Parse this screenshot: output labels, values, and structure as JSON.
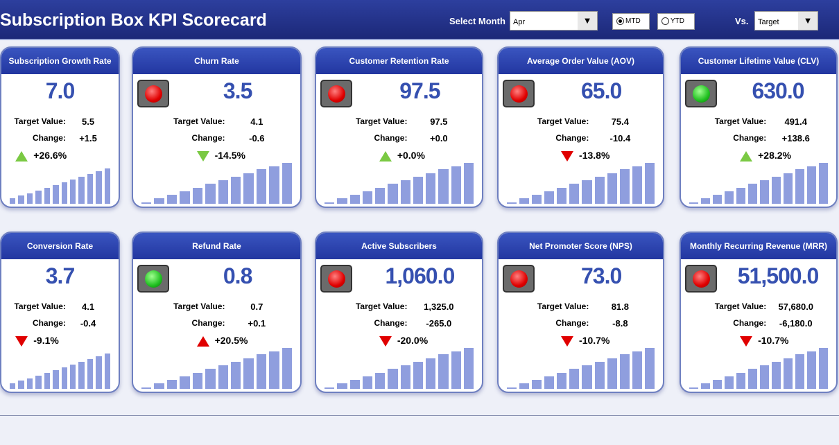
{
  "header": {
    "title": "Subscription Box KPI Scorecard",
    "select_month_label": "Select Month",
    "month": "Apr",
    "mtd": "MTD",
    "ytd": "YTD",
    "vs_label": "Vs.",
    "vs": "Target",
    "dropdown_arrow": "▼"
  },
  "labels": {
    "target": "Target Value:",
    "change": "Change:"
  },
  "colors": {
    "up_good": "#7ac943",
    "down_bad": "#e00000"
  },
  "cards": [
    {
      "title": "Subscription Growth Rate",
      "value": "7.0",
      "target": "5.5",
      "change": "+1.5",
      "pct": "+26.6%",
      "dir": "up",
      "color": "#7ac943",
      "indicator": "none",
      "trend": [
        10,
        16,
        22,
        28,
        34,
        40,
        46,
        52,
        58,
        64,
        70,
        76
      ]
    },
    {
      "title": "Churn Rate",
      "value": "3.5",
      "target": "4.1",
      "change": "-0.6",
      "pct": "-14.5%",
      "dir": "down",
      "color": "#7ac943",
      "indicator": "red",
      "trend": [
        2,
        10,
        18,
        26,
        34,
        42,
        50,
        58,
        66,
        74,
        80,
        88
      ]
    },
    {
      "title": "Customer Retention Rate",
      "value": "97.5",
      "target": "97.5",
      "change": "+0.0",
      "pct": "+0.0%",
      "dir": "up",
      "color": "#7ac943",
      "indicator": "red",
      "trend": [
        2,
        10,
        18,
        26,
        34,
        42,
        50,
        58,
        66,
        74,
        80,
        88
      ]
    },
    {
      "title": "Average Order Value (AOV)",
      "value": "65.0",
      "target": "75.4",
      "change": "-10.4",
      "pct": "-13.8%",
      "dir": "down",
      "color": "#e00000",
      "indicator": "red",
      "trend": [
        2,
        10,
        18,
        26,
        34,
        42,
        50,
        58,
        66,
        74,
        80,
        88
      ]
    },
    {
      "title": "Customer Lifetime Value (CLV)",
      "value": "630.0",
      "target": "491.4",
      "change": "+138.6",
      "pct": "+28.2%",
      "dir": "up",
      "color": "#7ac943",
      "indicator": "green",
      "trend": [
        2,
        10,
        18,
        26,
        34,
        42,
        50,
        58,
        66,
        74,
        80,
        88
      ]
    },
    {
      "title": "Conversion Rate",
      "value": "3.7",
      "target": "4.1",
      "change": "-0.4",
      "pct": "-9.1%",
      "dir": "down",
      "color": "#e00000",
      "indicator": "none",
      "trend": [
        10,
        16,
        22,
        28,
        34,
        40,
        46,
        52,
        58,
        64,
        70,
        76
      ]
    },
    {
      "title": "Refund Rate",
      "value": "0.8",
      "target": "0.7",
      "change": "+0.1",
      "pct": "+20.5%",
      "dir": "up",
      "color": "#e00000",
      "indicator": "green",
      "trend": [
        2,
        10,
        18,
        26,
        34,
        42,
        50,
        58,
        66,
        74,
        80,
        88
      ]
    },
    {
      "title": "Active Subscribers",
      "value": "1,060.0",
      "target": "1,325.0",
      "change": "-265.0",
      "pct": "-20.0%",
      "dir": "down",
      "color": "#e00000",
      "indicator": "red",
      "trend": [
        2,
        10,
        18,
        26,
        34,
        42,
        50,
        58,
        66,
        74,
        80,
        88
      ]
    },
    {
      "title": "Net Promoter Score (NPS)",
      "value": "73.0",
      "target": "81.8",
      "change": "-8.8",
      "pct": "-10.7%",
      "dir": "down",
      "color": "#e00000",
      "indicator": "red",
      "trend": [
        2,
        10,
        18,
        26,
        34,
        42,
        50,
        58,
        66,
        74,
        80,
        88
      ]
    },
    {
      "title": "Monthly Recurring Revenue (MRR)",
      "value": "51,500.0",
      "target": "57,680.0",
      "change": "-6,180.0",
      "pct": "-10.7%",
      "dir": "down",
      "color": "#e00000",
      "indicator": "red",
      "trend": [
        2,
        10,
        18,
        26,
        34,
        42,
        50,
        58,
        66,
        74,
        80,
        88
      ]
    }
  ]
}
